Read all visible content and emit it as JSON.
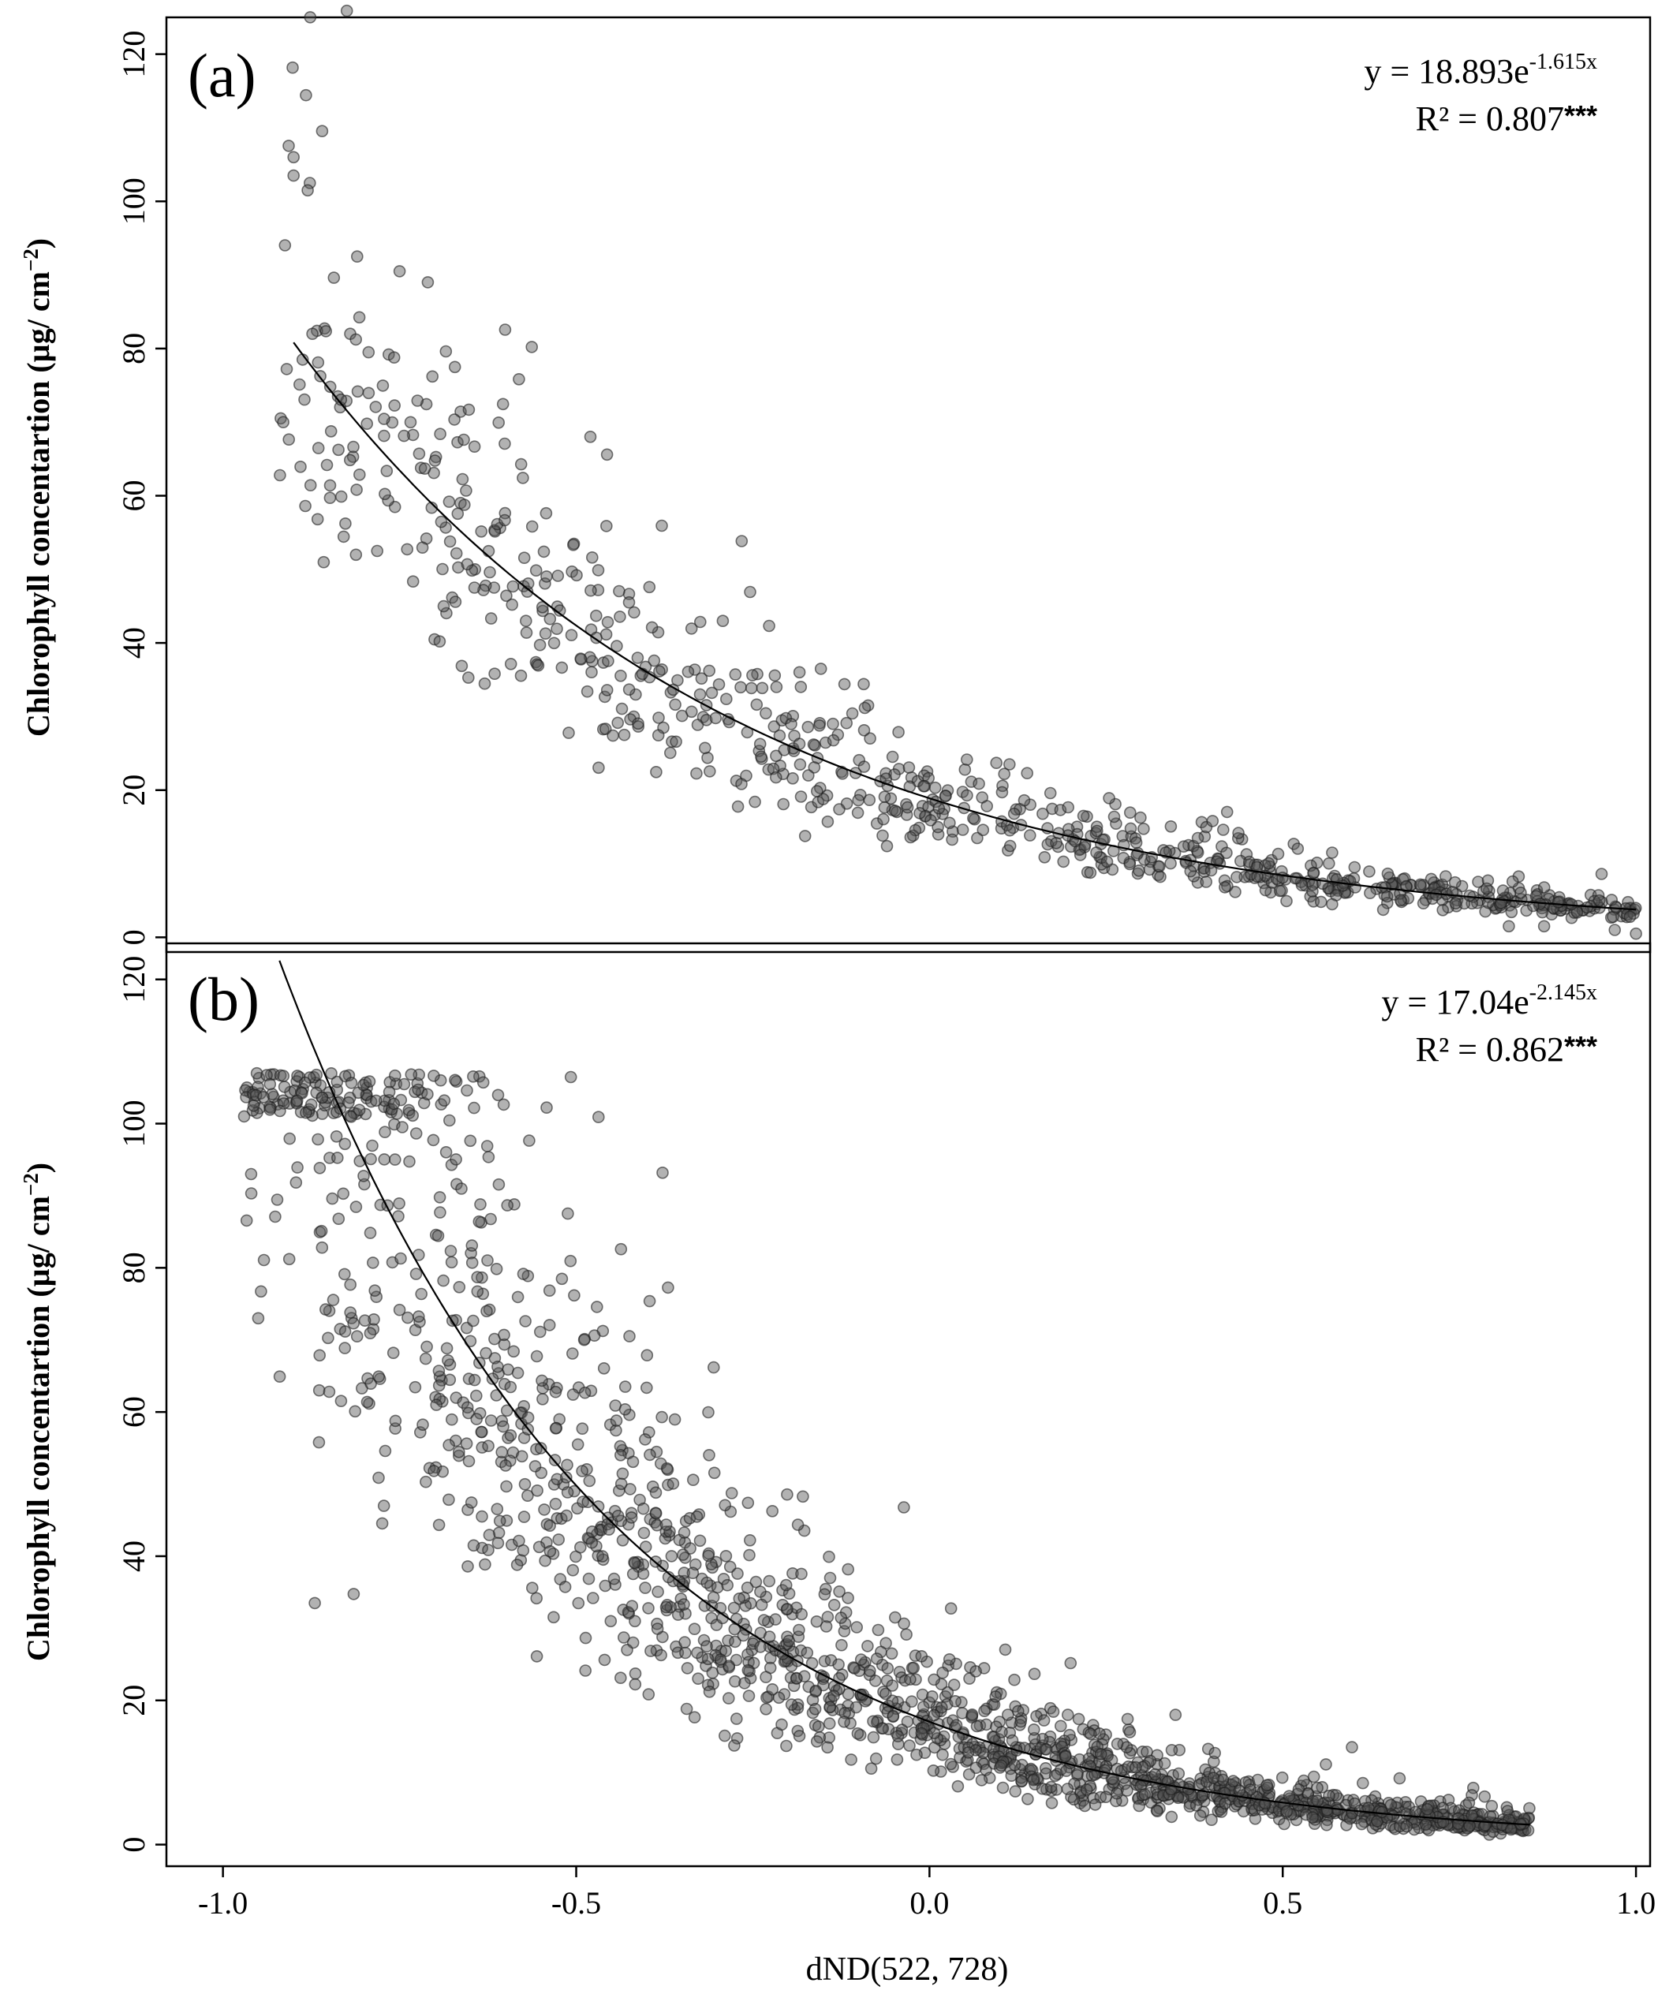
{
  "chart_data": [
    {
      "panel": "(a)",
      "type": "scatter",
      "xlabel": "dND(522, 728)",
      "ylabel": "Chlorophyll concentartion (µg/ cm",
      "ylabel_exp": "−2",
      "ylabel_close": ")",
      "xlim": [
        -1.08,
        1.02
      ],
      "ylim": [
        -2,
        125
      ],
      "yticks": [
        0,
        20,
        40,
        60,
        80,
        100,
        120
      ],
      "equation": {
        "prefix": "y = 18.893e",
        "exponent": "-1.615x",
        "r2": "R² = 0.807",
        "stars": "***"
      },
      "fit": {
        "a": 18.893,
        "b": -1.615,
        "x_range": [
          -0.9,
          1.0
        ]
      },
      "sample": {
        "n": 800,
        "x_range": [
          -0.92,
          1.0
        ],
        "noise": 0.2,
        "seed": 7
      },
      "highlights": [
        {
          "x": -0.9,
          "y": 106
        },
        {
          "x": -0.9,
          "y": 103.5
        },
        {
          "x": -0.88,
          "y": 101.5
        },
        {
          "x": -0.81,
          "y": 92.5
        },
        {
          "x": -0.75,
          "y": 90.5
        },
        {
          "x": -0.71,
          "y": 89
        },
        {
          "x": 0.57,
          "y": 11.5
        },
        {
          "x": 0.57,
          "y": 4.5
        },
        {
          "x": 0.82,
          "y": 1.5
        },
        {
          "x": 0.97,
          "y": 1
        },
        {
          "x": 1.0,
          "y": 0.5
        },
        {
          "x": 0.87,
          "y": 1.5
        }
      ]
    },
    {
      "panel": "(b)",
      "type": "scatter",
      "xlabel": "dND(522, 728)",
      "ylabel": "Chlorophyll concentartion (µg/ cm",
      "ylabel_exp": "−2",
      "ylabel_close": ")",
      "xlim": [
        -1.08,
        1.02
      ],
      "ylim": [
        -3,
        125
      ],
      "yticks": [
        0,
        20,
        40,
        60,
        80,
        100,
        120
      ],
      "xticks": [
        "-1.0",
        "-0.5",
        "0.0",
        "0.5",
        "1.0"
      ],
      "xtick_values": [
        -1.0,
        -0.5,
        0.0,
        0.5,
        1.0
      ],
      "equation": {
        "prefix": "y = 17.04e",
        "exponent": "-2.145x",
        "r2": "R² = 0.862",
        "stars": "***"
      },
      "fit": {
        "a": 17.04,
        "b": -2.145,
        "x_range": [
          -0.92,
          0.85
        ]
      },
      "sample": {
        "n": 1700,
        "x_range": [
          -0.97,
          0.85
        ],
        "noise": 0.28,
        "cap": 107,
        "seed": 13
      },
      "highlights": [
        {
          "x": -0.87,
          "y": 33.5
        },
        {
          "x": -0.95,
          "y": 73
        },
        {
          "x": -0.97,
          "y": 101
        }
      ]
    }
  ]
}
